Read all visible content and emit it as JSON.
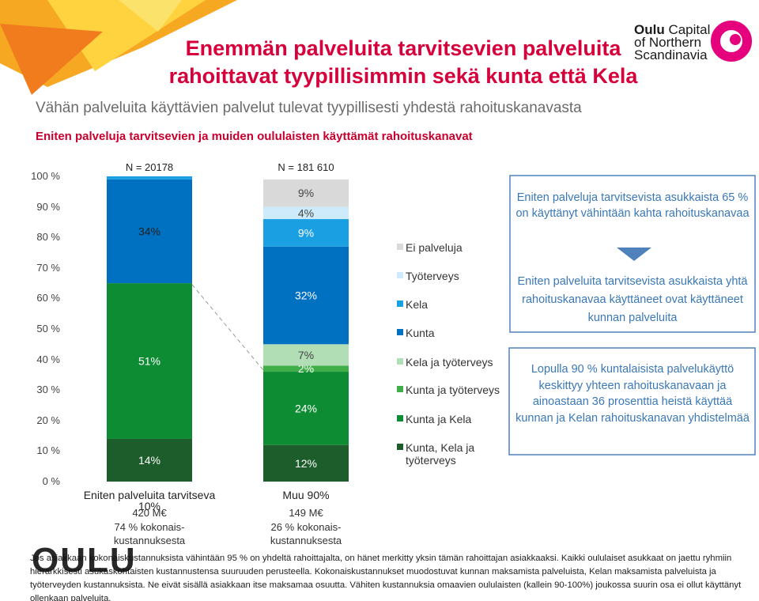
{
  "header": {
    "title": "Enemmän palveluita tarvitsevien palveluita rahoittavat tyypillisimmin sekä kunta että Kela",
    "subtitle": "Vähän palveluita käyttävien palvelut tulevat tyypillisesti yhdestä rahoituskanavasta",
    "logo": [
      "Oulu",
      "Capital",
      "of Northern",
      "Scandinavia"
    ]
  },
  "chart_data": {
    "type": "stacked_bar",
    "title": "Eniten palveluja tarvitsevien ja muiden oululaisten käyttämät rahoituskanavat",
    "categories": [
      "Eniten palveluita tarvitseva 10%",
      "Muu 90%"
    ],
    "sample_sizes": [
      "N = 20178",
      "N = 181 610"
    ],
    "costs": [
      "420 M€",
      "149 M€"
    ],
    "cost_shares": [
      "74 % kokonais-kustannuksesta",
      "26 % kokonais-kustannuksesta"
    ],
    "ylim": [
      0,
      100
    ],
    "yticks": [
      {
        "value": 0,
        "label": "0 %"
      },
      {
        "value": 10,
        "label": "10 %"
      },
      {
        "value": 20,
        "label": "20 %"
      },
      {
        "value": 30,
        "label": "30 %"
      },
      {
        "value": 40,
        "label": "40 %"
      },
      {
        "value": 50,
        "label": "50 %"
      },
      {
        "value": 60,
        "label": "60 %"
      },
      {
        "value": 70,
        "label": "70 %"
      },
      {
        "value": 80,
        "label": "80 %"
      },
      {
        "value": 90,
        "label": "90 %"
      },
      {
        "value": 100,
        "label": "100 %"
      }
    ],
    "series": [
      {
        "name": "Ei palveluja",
        "color": "#d9d9d9",
        "values": [
          0,
          9
        ],
        "value_labels": [
          null,
          "9%"
        ]
      },
      {
        "name": "Työterveys",
        "color": "#cdebfa",
        "values": [
          0,
          4
        ],
        "value_labels": [
          null,
          "4%"
        ]
      },
      {
        "name": "Kela",
        "color": "#1b9fe3",
        "values": [
          1,
          9
        ],
        "value_labels": [
          null,
          "9%"
        ]
      },
      {
        "name": "Kunta",
        "color": "#0070c0",
        "values": [
          34,
          32
        ],
        "value_labels": [
          "34%",
          "32%"
        ]
      },
      {
        "name": "Kela ja työterveys",
        "color": "#b2deb5",
        "values": [
          0,
          7
        ],
        "value_labels": [
          null,
          "7%"
        ]
      },
      {
        "name": "Kunta ja työterveys",
        "color": "#3fae49",
        "values": [
          0,
          2
        ],
        "value_labels": [
          null,
          "2%"
        ]
      },
      {
        "name": "Kunta ja Kela",
        "color": "#0e8c34",
        "values": [
          51,
          24
        ],
        "value_labels": [
          "51%",
          "24%"
        ]
      },
      {
        "name": "Kunta, Kela ja työterveys",
        "color": "#1d5c2b",
        "values": [
          14,
          12
        ],
        "value_labels": [
          "14%",
          "12%"
        ]
      }
    ]
  },
  "notes": {
    "box_1": "Eniten palveluja tarvitsevista asukkaista 65 % on käyttänyt vähintään kahta rahoituskanavaa",
    "box_2": "Eniten palveluita tarvitsevista asukkaista yhtä rahoituskanavaa käyttäneet ovat käyttäneet kunnan palveluita",
    "box_3": "Lopulla 90 % kuntalaisista palvelukäyttö keskittyy yhteen rahoituskanavaan ja ainoastaan 36 prosenttia heistä käyttää kunnan ja Kelan rahoituskanavan yhdistelmää",
    "footnote": "Jos asiakkaan kokonaiskustannuksista vähintään 95 % on yhdeltä rahoittajalta, on hänet merkitty yksin tämän rahoittajan asiakkaaksi. Kaikki oululaiset asukkaat on jaettu ryhmiin hierarkkisesti asukaskohtaisten kustannustensa suuruuden perusteella. Kokonaiskustannukset muodostuvat kunnan maksamista palveluista, Kelan maksamista palveluista ja työterveyden kustannuksista. Ne eivät sisällä asiakkaan itse maksamaa osuutta. Vähiten kustannuksia omaavien oululaisten (kallein 90-100%) joukossa suurin osa ei ollut käyttänyt ollenkaan palveluita.",
    "city_logo": "OULU"
  }
}
